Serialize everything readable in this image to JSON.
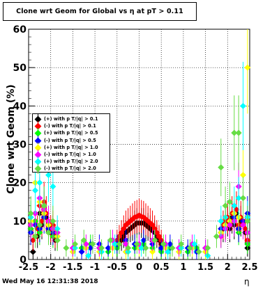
{
  "title": "Clone wrt Geom for Global vs   η at pT > 0.11",
  "footer": {
    "date": "Wed May 16 12:31:38 2018"
  },
  "chart_data": {
    "type": "scatter",
    "title": "Clone wrt Geom for Global vs   η at pT > 0.11",
    "xlabel": "η",
    "ylabel": "Clone wrt Geom (%)",
    "xlim": [
      -2.5,
      2.5
    ],
    "ylim": [
      0,
      60
    ],
    "xticks": [
      "-2.5",
      "-2",
      "-1.5",
      "-1",
      "-0.5",
      "0",
      "0.5",
      "1",
      "1.5",
      "2",
      "2.5"
    ],
    "yticks": [
      "0",
      "10",
      "20",
      "30",
      "40",
      "50",
      "60"
    ],
    "grid": true,
    "legend_position": "left-middle",
    "series": [
      {
        "name": "(+) with p T/|q| > 0.1",
        "color": "#000000",
        "x": [
          -2.45,
          -2.4,
          -2.35,
          -2.3,
          -2.25,
          -2.2,
          -2.15,
          -2.1,
          -2.05,
          -2,
          -1.95,
          -1.9,
          -1.85,
          -0.5,
          -0.45,
          -0.4,
          -0.35,
          -0.3,
          -0.25,
          -0.2,
          -0.15,
          -0.1,
          -0.05,
          0,
          0.05,
          0.1,
          0.15,
          0.2,
          0.25,
          0.3,
          0.35,
          0.4,
          0.45,
          0.5,
          1.85,
          1.9,
          1.95,
          2,
          2.05,
          2.1,
          2.15,
          2.2,
          2.25,
          2.3,
          2.35,
          2.4,
          2.45
        ],
        "y": [
          8,
          2,
          10,
          6,
          12,
          9,
          13,
          11,
          9,
          7,
          8,
          5,
          6,
          3,
          4,
          5,
          6,
          7,
          7.5,
          8,
          8.5,
          9,
          9.5,
          9.5,
          9.5,
          9.5,
          9,
          8.5,
          8,
          7.5,
          7,
          6,
          5,
          4,
          7,
          8,
          9,
          10,
          8,
          11,
          9,
          12,
          8,
          10,
          9,
          7,
          3
        ]
      },
      {
        "name": "(-) with p T/|q| > 0.1",
        "color": "#ff0000",
        "x": [
          -2.45,
          -2.4,
          -2.35,
          -2.3,
          -2.25,
          -2.2,
          -2.15,
          -2.1,
          -2.05,
          -2,
          -1.95,
          -1.9,
          -1.85,
          -0.5,
          -0.45,
          -0.4,
          -0.35,
          -0.3,
          -0.25,
          -0.2,
          -0.15,
          -0.1,
          -0.05,
          0,
          0.05,
          0.1,
          0.15,
          0.2,
          0.25,
          0.3,
          0.35,
          0.4,
          0.45,
          0.5,
          1.85,
          1.9,
          1.95,
          2,
          2.05,
          2.1,
          2.15,
          2.2,
          2.25,
          2.3,
          2.35,
          2.4,
          2.45
        ],
        "y": [
          9,
          5,
          12,
          8,
          14,
          10,
          15,
          12,
          10,
          8,
          9,
          6,
          7,
          5,
          6,
          7,
          8,
          9,
          9.5,
          10,
          10.5,
          11,
          11.2,
          11.5,
          11.2,
          11,
          10.5,
          10,
          9.5,
          9,
          8,
          7,
          6,
          5,
          8,
          9,
          10,
          11,
          9,
          12,
          10,
          13,
          9,
          11,
          10,
          8,
          5
        ]
      },
      {
        "name": "(+) with p T/|q| > 0.5",
        "color": "#00ff00",
        "x": [
          -2.45,
          -2.35,
          -2.25,
          -2.15,
          -2.05,
          -1.95,
          -1.85,
          -1.5,
          -1.3,
          -1.1,
          -0.9,
          -0.7,
          -0.5,
          -0.3,
          -0.1,
          0.1,
          0.3,
          0.5,
          0.7,
          0.9,
          1.1,
          1.3,
          1.5,
          1.85,
          1.95,
          2.05,
          2.15,
          2.25,
          2.35,
          2.45
        ],
        "y": [
          8,
          10,
          7,
          12,
          9,
          6,
          5,
          2,
          3,
          4,
          3,
          2,
          3,
          2,
          3,
          4,
          3,
          2,
          3,
          2,
          2,
          3,
          2,
          6,
          8,
          9,
          10,
          7,
          9,
          4
        ]
      },
      {
        "name": "(-) with p T/|q| > 0.5",
        "color": "#0000ff",
        "x": [
          -2.45,
          -2.35,
          -2.25,
          -2.15,
          -2.05,
          -1.95,
          -1.85,
          -1.5,
          -1.3,
          -1.1,
          -0.9,
          -0.7,
          -0.5,
          -0.3,
          -0.1,
          0.1,
          0.3,
          0.5,
          0.7,
          0.9,
          1.1,
          1.3,
          1.5,
          1.85,
          1.95,
          2.05,
          2.15,
          2.25,
          2.35,
          2.45
        ],
        "y": [
          7,
          9,
          8,
          11,
          8,
          7,
          6,
          3,
          2,
          3,
          4,
          3,
          4,
          5,
          4,
          5,
          4,
          3,
          4,
          3,
          3,
          2,
          3,
          8,
          9,
          10,
          11,
          8,
          10,
          12
        ]
      },
      {
        "name": "(+) with p T/|q| > 1.0",
        "color": "#ffff00",
        "x": [
          -2.45,
          -2.35,
          -2.25,
          -2.15,
          -2.05,
          -1.95,
          -1.85,
          -1.5,
          -1.2,
          -0.9,
          -0.6,
          -0.3,
          0,
          0.3,
          0.6,
          0.9,
          1.2,
          1.5,
          1.85,
          1.95,
          2.05,
          2.15,
          2.25,
          2.35,
          2.45
        ],
        "y": [
          10,
          20,
          15,
          12,
          9,
          8,
          6,
          2,
          3,
          2,
          3,
          2,
          3,
          2,
          3,
          2,
          3,
          2,
          7,
          9,
          10,
          12,
          11,
          22,
          50
        ]
      },
      {
        "name": "(-) with p T/|q| > 1.0",
        "color": "#ff00ff",
        "x": [
          -2.45,
          -2.35,
          -2.25,
          -2.15,
          -2.05,
          -1.95,
          -1.85,
          -1.5,
          -1.2,
          -0.9,
          -0.6,
          -0.3,
          0,
          0.3,
          0.6,
          0.9,
          1.2,
          1.5,
          1.85,
          1.95,
          2.05,
          2.15,
          2.25,
          2.35,
          2.45
        ],
        "y": [
          9,
          12,
          16,
          13,
          10,
          8,
          7,
          3,
          4,
          3,
          5,
          4,
          4,
          5,
          4,
          3,
          4,
          3,
          6,
          8,
          9,
          10,
          19,
          9,
          7
        ]
      },
      {
        "name": "(+) with p T/|q| > 2.0",
        "color": "#00ffff",
        "x": [
          -2.45,
          -2.35,
          -2.25,
          -2.15,
          -2.05,
          -1.95,
          -1.85,
          -1.45,
          -1.15,
          -0.85,
          -0.55,
          -0.25,
          0.05,
          0.35,
          0.65,
          0.95,
          1.25,
          1.55,
          1.85,
          1.95,
          2.05,
          2.15,
          2.25,
          2.35,
          2.45
        ],
        "y": [
          11,
          18,
          20,
          14,
          22,
          19,
          8,
          3,
          1,
          2,
          4,
          2,
          3,
          5,
          2,
          3,
          4,
          1,
          10,
          11,
          15,
          14,
          16,
          40,
          11
        ]
      },
      {
        "name": "(-) with p T/|q| > 2.0",
        "color": "#66dd44",
        "x": [
          -2.45,
          -2.35,
          -2.25,
          -2.15,
          -2.05,
          -1.95,
          -1.85,
          -1.65,
          -1.45,
          -1.25,
          -1.05,
          -0.85,
          -0.65,
          -0.45,
          -0.25,
          -0.05,
          0.15,
          0.35,
          0.55,
          0.75,
          0.95,
          1.15,
          1.35,
          1.55,
          1.75,
          1.85,
          1.95,
          2.05,
          2.15,
          2.25,
          2.35,
          2.45
        ],
        "y": [
          12,
          6,
          9,
          14,
          7,
          10,
          5,
          3,
          4,
          5,
          4,
          3,
          5,
          4,
          3,
          4,
          3,
          5,
          4,
          3,
          4,
          3,
          2,
          3,
          6,
          24,
          14,
          15,
          33,
          33,
          16,
          10
        ]
      }
    ]
  }
}
